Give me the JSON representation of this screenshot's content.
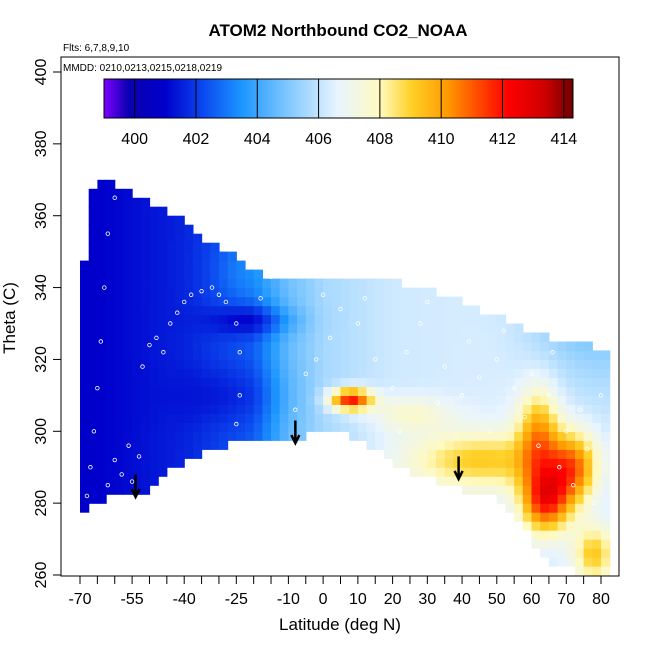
{
  "chart_data": {
    "type": "heatmap",
    "title": "ATOM2 Northbound CO2_NOAA",
    "annotations": {
      "flights": "Flts: 6,7,8,9,10",
      "dates": "MMDD: 0210,0213,0215,0218,0219"
    },
    "xlabel": "Latitude (deg N)",
    "ylabel": "Theta (C)",
    "xlim": [
      -70,
      80
    ],
    "ylim": [
      260,
      400
    ],
    "x_ticks": [
      -70,
      -55,
      -40,
      -25,
      -10,
      0,
      10,
      20,
      30,
      40,
      50,
      60,
      70,
      80
    ],
    "x_tick_labels": [
      "-70",
      "-55",
      "-40",
      "-25",
      "-10",
      "0",
      "10",
      "20",
      "30",
      "40",
      "50",
      "60",
      "70",
      "80"
    ],
    "x_minor_ticks": [
      -65,
      -60,
      -50,
      -45,
      -35,
      -30,
      -20,
      -15,
      -5,
      5,
      15,
      25,
      35,
      45,
      55,
      65,
      75
    ],
    "y_ticks": [
      260,
      280,
      300,
      320,
      340,
      360,
      380,
      400
    ],
    "y_tick_labels": [
      "260",
      "280",
      "300",
      "320",
      "340",
      "360",
      "380",
      "400"
    ],
    "colorbar": {
      "range": [
        399,
        414.3
      ],
      "ticks": [
        400,
        402,
        404,
        406,
        408,
        410,
        412,
        414
      ],
      "tick_labels": [
        "400",
        "402",
        "404",
        "406",
        "408",
        "410",
        "412",
        "414"
      ],
      "colors": [
        {
          "v": 399.0,
          "c": "#7f00ff"
        },
        {
          "v": 399.8,
          "c": "#0a00b0"
        },
        {
          "v": 401.0,
          "c": "#0000cc"
        },
        {
          "v": 402.3,
          "c": "#0c4cf0"
        },
        {
          "v": 403.5,
          "c": "#1c96ff"
        },
        {
          "v": 405.0,
          "c": "#80c8ff"
        },
        {
          "v": 406.6,
          "c": "#e8f4ff"
        },
        {
          "v": 408.0,
          "c": "#fffac0"
        },
        {
          "v": 409.0,
          "c": "#ffd22a"
        },
        {
          "v": 410.2,
          "c": "#ff9a00"
        },
        {
          "v": 411.2,
          "c": "#ff4a00"
        },
        {
          "v": 412.2,
          "c": "#ff0000"
        },
        {
          "v": 413.4,
          "c": "#cc0000"
        },
        {
          "v": 414.3,
          "c": "#6e0000"
        }
      ]
    },
    "coverage": {
      "lat": [
        -70,
        -67,
        -65,
        -60,
        -55,
        -50,
        -45,
        -40,
        -35,
        -30,
        -25,
        -20,
        -15,
        -10,
        -5,
        0,
        5,
        10,
        15,
        20,
        25,
        30,
        35,
        40,
        45,
        50,
        55,
        60,
        65,
        70,
        75,
        80
      ],
      "theta_min": [
        277,
        280,
        281,
        282,
        283,
        284,
        289,
        291,
        294,
        296,
        297,
        297,
        298,
        298,
        299,
        301,
        300,
        298,
        295,
        292,
        289,
        287,
        285,
        284,
        283,
        282,
        276,
        270,
        264,
        262,
        261,
        260
      ],
      "theta_max": [
        336,
        366,
        370,
        369,
        366,
        363,
        361,
        359,
        354,
        351,
        348,
        345,
        343,
        342,
        342,
        342,
        343,
        343,
        343,
        342,
        340,
        339,
        338,
        336,
        334,
        332,
        330,
        328,
        326,
        325,
        324,
        323
      ]
    },
    "co2_field": {
      "background": [
        {
          "lat": -70,
          "co2": 400.8
        },
        {
          "lat": -40,
          "co2": 401.6
        },
        {
          "lat": -20,
          "co2": 402.6
        },
        {
          "lat": -10,
          "co2": 404.6
        },
        {
          "lat": 0,
          "co2": 405.6
        },
        {
          "lat": 20,
          "co2": 406.2
        },
        {
          "lat": 50,
          "co2": 406.4
        },
        {
          "lat": 80,
          "co2": 406.2
        }
      ],
      "features": [
        {
          "lat": 78,
          "theta": 345,
          "dlat": 18,
          "dtheta": 25,
          "dco2": -2.3
        },
        {
          "lat": -20,
          "theta": 331,
          "dlat": 12,
          "dtheta": 4,
          "dco2": -1.6
        },
        {
          "lat": -25,
          "theta": 310,
          "dlat": 16,
          "dtheta": 8,
          "dco2": -0.7
        },
        {
          "lat": -22,
          "theta": 345,
          "dlat": 10,
          "dtheta": 10,
          "dco2": 0.8
        },
        {
          "lat": 8,
          "theta": 309,
          "dlat": 6,
          "dtheta": 3,
          "dco2": 6.0
        },
        {
          "lat": 25,
          "theta": 305,
          "dlat": 12,
          "dtheta": 5,
          "dco2": 1.4
        },
        {
          "lat": 45,
          "theta": 292,
          "dlat": 22,
          "dtheta": 8,
          "dco2": 2.8
        },
        {
          "lat": 72,
          "theta": 290,
          "dlat": 7,
          "dtheta": 10,
          "dco2": 4.0
        },
        {
          "lat": 64,
          "theta": 281,
          "dlat": 7,
          "dtheta": 9,
          "dco2": 5.4
        },
        {
          "lat": 62,
          "theta": 300,
          "dlat": 6,
          "dtheta": 12,
          "dco2": 3.5
        },
        {
          "lat": 78,
          "theta": 266,
          "dlat": 6,
          "dtheta": 8,
          "dco2": 3.0
        }
      ]
    },
    "flight_track_points": [
      {
        "lat": -68,
        "theta": 282
      },
      {
        "lat": -67,
        "theta": 290
      },
      {
        "lat": -66,
        "theta": 300
      },
      {
        "lat": -65,
        "theta": 312
      },
      {
        "lat": -64,
        "theta": 325
      },
      {
        "lat": -63,
        "theta": 340
      },
      {
        "lat": -62,
        "theta": 355
      },
      {
        "lat": -60,
        "theta": 365
      },
      {
        "lat": -58,
        "theta": 369
      },
      {
        "lat": -62,
        "theta": 285
      },
      {
        "lat": -60,
        "theta": 292
      },
      {
        "lat": -58,
        "theta": 288
      },
      {
        "lat": -56,
        "theta": 296
      },
      {
        "lat": -55,
        "theta": 286
      },
      {
        "lat": -53,
        "theta": 293
      },
      {
        "lat": -52,
        "theta": 318
      },
      {
        "lat": -50,
        "theta": 324
      },
      {
        "lat": -48,
        "theta": 326
      },
      {
        "lat": -46,
        "theta": 322
      },
      {
        "lat": -44,
        "theta": 330
      },
      {
        "lat": -42,
        "theta": 333
      },
      {
        "lat": -40,
        "theta": 336
      },
      {
        "lat": -38,
        "theta": 338
      },
      {
        "lat": -35,
        "theta": 339
      },
      {
        "lat": -32,
        "theta": 340
      },
      {
        "lat": -30,
        "theta": 338
      },
      {
        "lat": -28,
        "theta": 336
      },
      {
        "lat": -25,
        "theta": 330
      },
      {
        "lat": -24,
        "theta": 322
      },
      {
        "lat": -24,
        "theta": 310
      },
      {
        "lat": -25,
        "theta": 302
      },
      {
        "lat": -18,
        "theta": 337
      },
      {
        "lat": -15,
        "theta": 343
      },
      {
        "lat": -12,
        "theta": 346
      },
      {
        "lat": -10,
        "theta": 348
      },
      {
        "lat": -8,
        "theta": 306
      },
      {
        "lat": -2,
        "theta": 320
      },
      {
        "lat": 2,
        "theta": 326
      },
      {
        "lat": 5,
        "theta": 334
      },
      {
        "lat": 10,
        "theta": 330
      },
      {
        "lat": 15,
        "theta": 320
      },
      {
        "lat": 20,
        "theta": 312
      },
      {
        "lat": 24,
        "theta": 322
      },
      {
        "lat": 28,
        "theta": 330
      },
      {
        "lat": 30,
        "theta": 336
      },
      {
        "lat": 35,
        "theta": 318
      },
      {
        "lat": 40,
        "theta": 310
      },
      {
        "lat": 42,
        "theta": 325
      },
      {
        "lat": 45,
        "theta": 315
      },
      {
        "lat": 48,
        "theta": 300
      },
      {
        "lat": 50,
        "theta": 320
      },
      {
        "lat": 55,
        "theta": 312
      },
      {
        "lat": 58,
        "theta": 304
      },
      {
        "lat": 60,
        "theta": 316
      },
      {
        "lat": 62,
        "theta": 296
      },
      {
        "lat": 65,
        "theta": 310
      },
      {
        "lat": 68,
        "theta": 290
      },
      {
        "lat": 70,
        "theta": 300
      },
      {
        "lat": 72,
        "theta": 285
      },
      {
        "lat": 74,
        "theta": 306
      },
      {
        "lat": 76,
        "theta": 295
      },
      {
        "lat": 78,
        "theta": 280
      },
      {
        "lat": 80,
        "theta": 310
      },
      {
        "lat": -5,
        "theta": 316
      },
      {
        "lat": 0,
        "theta": 338
      },
      {
        "lat": 12,
        "theta": 337
      },
      {
        "lat": 22,
        "theta": 300
      },
      {
        "lat": 33,
        "theta": 308
      },
      {
        "lat": 52,
        "theta": 328
      },
      {
        "lat": 66,
        "theta": 322
      }
    ],
    "arrows": [
      {
        "lat": -54,
        "theta_top": 288,
        "theta_bottom": 282
      },
      {
        "lat": -8,
        "theta_top": 303,
        "theta_bottom": 297
      },
      {
        "lat": 39,
        "theta_top": 293,
        "theta_bottom": 287
      }
    ]
  }
}
